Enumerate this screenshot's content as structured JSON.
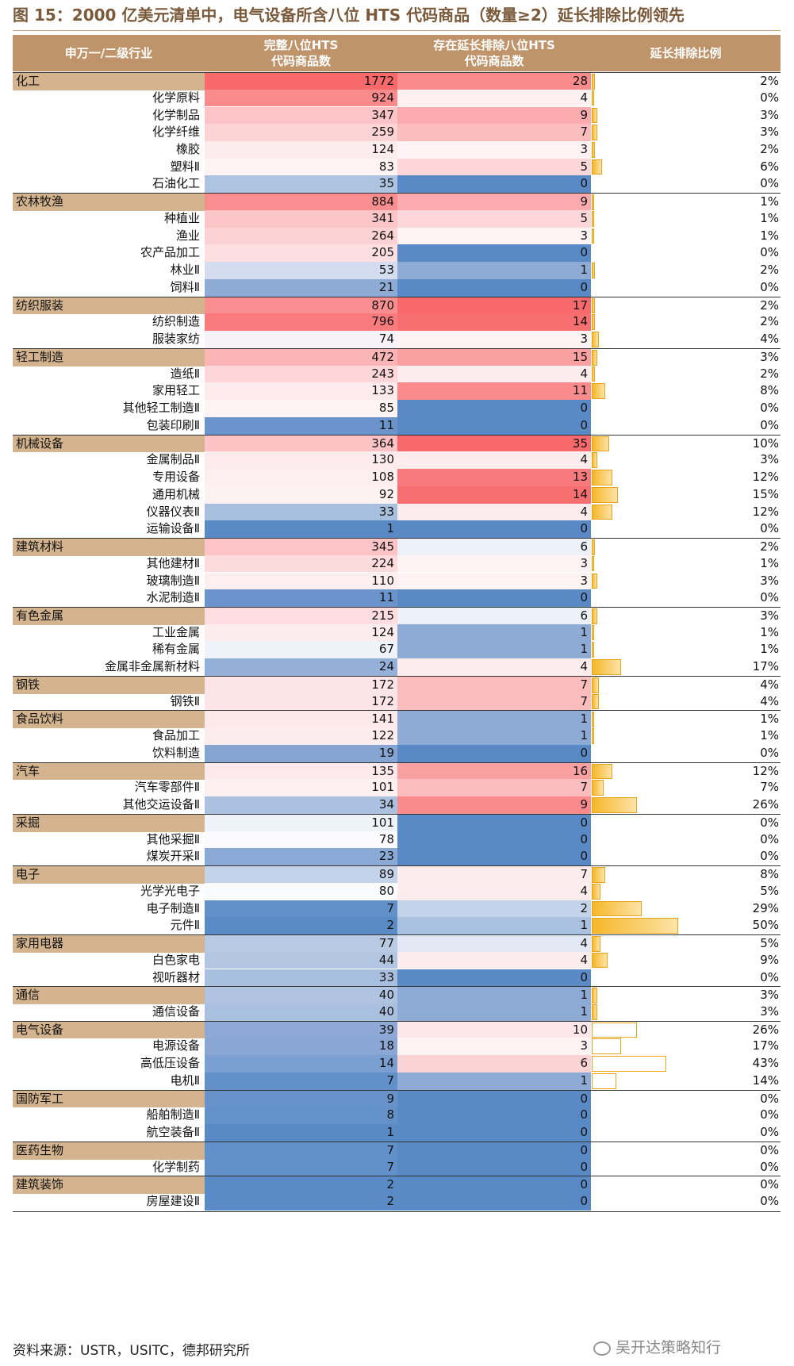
{
  "title": "图 15：2000 亿美元清单中，电气设备所含八位 HTS 代码商品（数量≥2）延长排除比例领先",
  "header": {
    "industry": "申万一/二级行业",
    "full_line1": "完整八位HTS",
    "full_line2": "代码商品数",
    "ext_line1": "存在延长排除八位HTS",
    "ext_line2": "代码商品数",
    "ratio": "延长排除比例"
  },
  "rows": [
    {
      "name": "化工",
      "level": 1,
      "full": "1772",
      "ext": "28",
      "pct": "2%",
      "full_color": "#f8696b",
      "ext_color": "#f98b8d",
      "ratio": 2,
      "hollow": false
    },
    {
      "name": "化学原料",
      "level": 2,
      "full": "924",
      "ext": "4",
      "pct": "0%",
      "full_color": "#f98b8d",
      "ext_color": "#fdf0f1",
      "ratio": 0.4,
      "hollow": false
    },
    {
      "name": "化学制品",
      "level": 2,
      "full": "347",
      "ext": "9",
      "pct": "3%",
      "full_color": "#fcc4c6",
      "ext_color": "#fbabae",
      "ratio": 3,
      "hollow": false
    },
    {
      "name": "化学纤维",
      "level": 2,
      "full": "259",
      "ext": "7",
      "pct": "3%",
      "full_color": "#fcd4d6",
      "ext_color": "#fbbcbe",
      "ratio": 3,
      "hollow": false
    },
    {
      "name": "橡胶",
      "level": 2,
      "full": "124",
      "ext": "3",
      "pct": "2%",
      "full_color": "#fdecee",
      "ext_color": "#fdf3f4",
      "ratio": 2,
      "hollow": false
    },
    {
      "name": "塑料Ⅱ",
      "level": 2,
      "full": "83",
      "ext": "5",
      "pct": "6%",
      "full_color": "#fdf3f4",
      "ext_color": "#fcd6d8",
      "ratio": 6,
      "hollow": false
    },
    {
      "name": "石油化工",
      "level": 2,
      "full": "35",
      "ext": "0",
      "pct": "0%",
      "full_color": "#aec3e0",
      "ext_color": "#5a8ac6",
      "ratio": 0,
      "hollow": false
    },
    {
      "name": "农林牧渔",
      "level": 1,
      "full": "884",
      "ext": "9",
      "pct": "1%",
      "full_color": "#f98e90",
      "ext_color": "#fbabae",
      "ratio": 1,
      "hollow": false
    },
    {
      "name": "种植业",
      "level": 2,
      "full": "341",
      "ext": "5",
      "pct": "1%",
      "full_color": "#fcc6c8",
      "ext_color": "#fcd6d8",
      "ratio": 1,
      "hollow": false
    },
    {
      "name": "渔业",
      "level": 2,
      "full": "264",
      "ext": "3",
      "pct": "1%",
      "full_color": "#fcd2d4",
      "ext_color": "#fdf3f4",
      "ratio": 1,
      "hollow": false
    },
    {
      "name": "农产品加工",
      "level": 2,
      "full": "205",
      "ext": "0",
      "pct": "0%",
      "full_color": "#fddfe1",
      "ext_color": "#5a8ac6",
      "ratio": 0,
      "hollow": false
    },
    {
      "name": "林业Ⅱ",
      "level": 2,
      "full": "53",
      "ext": "1",
      "pct": "2%",
      "full_color": "#d3ddef",
      "ext_color": "#8eabd6",
      "ratio": 2,
      "hollow": false
    },
    {
      "name": "饲料Ⅱ",
      "level": 2,
      "full": "21",
      "ext": "0",
      "pct": "0%",
      "full_color": "#8eabd6",
      "ext_color": "#5a8ac6",
      "ratio": 0,
      "hollow": false
    },
    {
      "name": "纺织服装",
      "level": 1,
      "full": "870",
      "ext": "17",
      "pct": "2%",
      "full_color": "#f98f91",
      "ext_color": "#f8696b",
      "ratio": 2,
      "hollow": false
    },
    {
      "name": "纺织制造",
      "level": 2,
      "full": "796",
      "ext": "14",
      "pct": "2%",
      "full_color": "#f97b7d",
      "ext_color": "#f86f71",
      "ratio": 2,
      "hollow": false
    },
    {
      "name": "服装家纺",
      "level": 2,
      "full": "74",
      "ext": "3",
      "pct": "4%",
      "full_color": "#f5f3f8",
      "ext_color": "#fdf3f4",
      "ratio": 4,
      "hollow": false
    },
    {
      "name": "轻工制造",
      "level": 1,
      "full": "472",
      "ext": "15",
      "pct": "3%",
      "full_color": "#fbb5b7",
      "ext_color": "#f9a0a2",
      "ratio": 3,
      "hollow": false
    },
    {
      "name": "造纸Ⅱ",
      "level": 2,
      "full": "243",
      "ext": "4",
      "pct": "2%",
      "full_color": "#fcd6d8",
      "ext_color": "#fdecee",
      "ratio": 2,
      "hollow": false
    },
    {
      "name": "家用轻工",
      "level": 2,
      "full": "133",
      "ext": "11",
      "pct": "8%",
      "full_color": "#fdeaec",
      "ext_color": "#f98b8d",
      "ratio": 8,
      "hollow": false
    },
    {
      "name": "其他轻工制造Ⅱ",
      "level": 2,
      "full": "85",
      "ext": "0",
      "pct": "0%",
      "full_color": "#fdf3f4",
      "ext_color": "#5a8ac6",
      "ratio": 0,
      "hollow": false
    },
    {
      "name": "包装印刷Ⅱ",
      "level": 2,
      "full": "11",
      "ext": "0",
      "pct": "0%",
      "full_color": "#6a94cb",
      "ext_color": "#5a8ac6",
      "ratio": 0,
      "hollow": false
    },
    {
      "name": "机械设备",
      "level": 1,
      "full": "364",
      "ext": "35",
      "pct": "10%",
      "full_color": "#fcc2c4",
      "ext_color": "#f8696b",
      "ratio": 10,
      "hollow": false
    },
    {
      "name": "金属制品Ⅱ",
      "level": 2,
      "full": "130",
      "ext": "4",
      "pct": "3%",
      "full_color": "#fdeaec",
      "ext_color": "#fdecee",
      "ratio": 3,
      "hollow": false
    },
    {
      "name": "专用设备",
      "level": 2,
      "full": "108",
      "ext": "13",
      "pct": "12%",
      "full_color": "#fdeef0",
      "ext_color": "#f97a7c",
      "ratio": 12,
      "hollow": false
    },
    {
      "name": "通用机械",
      "level": 2,
      "full": "92",
      "ext": "14",
      "pct": "15%",
      "full_color": "#fdf2f3",
      "ext_color": "#f86f71",
      "ratio": 15,
      "hollow": false
    },
    {
      "name": "仪器仪表Ⅱ",
      "level": 2,
      "full": "33",
      "ext": "4",
      "pct": "12%",
      "full_color": "#a9bfde",
      "ext_color": "#fdecee",
      "ratio": 12,
      "hollow": false
    },
    {
      "name": "运输设备Ⅱ",
      "level": 2,
      "full": "1",
      "ext": "0",
      "pct": "0%",
      "full_color": "#5a8ac6",
      "ext_color": "#5a8ac6",
      "ratio": 0,
      "hollow": false
    },
    {
      "name": "建筑材料",
      "level": 1,
      "full": "345",
      "ext": "6",
      "pct": "2%",
      "full_color": "#fcc4c6",
      "ext_color": "#ecf0f8",
      "ratio": 2,
      "hollow": false
    },
    {
      "name": "其他建材Ⅱ",
      "level": 2,
      "full": "224",
      "ext": "3",
      "pct": "1%",
      "full_color": "#fddbdd",
      "ext_color": "#fdf3f4",
      "ratio": 1,
      "hollow": false
    },
    {
      "name": "玻璃制造Ⅱ",
      "level": 2,
      "full": "110",
      "ext": "3",
      "pct": "3%",
      "full_color": "#fdeef0",
      "ext_color": "#fdf3f4",
      "ratio": 3,
      "hollow": false
    },
    {
      "name": "水泥制造Ⅱ",
      "level": 2,
      "full": "11",
      "ext": "0",
      "pct": "0%",
      "full_color": "#6a94cb",
      "ext_color": "#5a8ac6",
      "ratio": 0,
      "hollow": false
    },
    {
      "name": "有色金属",
      "level": 1,
      "full": "215",
      "ext": "6",
      "pct": "3%",
      "full_color": "#fddde0",
      "ext_color": "#ecf0f8",
      "ratio": 3,
      "hollow": false
    },
    {
      "name": "工业金属",
      "level": 2,
      "full": "124",
      "ext": "1",
      "pct": "1%",
      "full_color": "#fdecee",
      "ext_color": "#8eabd6",
      "ratio": 1,
      "hollow": false
    },
    {
      "name": "稀有金属",
      "level": 2,
      "full": "67",
      "ext": "1",
      "pct": "1%",
      "full_color": "#eef2f9",
      "ext_color": "#8eabd6",
      "ratio": 1,
      "hollow": false
    },
    {
      "name": "金属非金属新材料",
      "level": 2,
      "full": "24",
      "ext": "4",
      "pct": "17%",
      "full_color": "#95b0d8",
      "ext_color": "#fdecee",
      "ratio": 17,
      "hollow": false
    },
    {
      "name": "钢铁",
      "level": 1,
      "full": "172",
      "ext": "7",
      "pct": "4%",
      "full_color": "#fde4e6",
      "ext_color": "#fbbcbe",
      "ratio": 4,
      "hollow": false
    },
    {
      "name": "钢铁Ⅱ",
      "level": 2,
      "full": "172",
      "ext": "7",
      "pct": "4%",
      "full_color": "#fde4e6",
      "ext_color": "#fbbcbe",
      "ratio": 4,
      "hollow": false
    },
    {
      "name": "食品饮料",
      "level": 1,
      "full": "141",
      "ext": "1",
      "pct": "1%",
      "full_color": "#fde8ea",
      "ext_color": "#8eabd6",
      "ratio": 1,
      "hollow": false
    },
    {
      "name": "食品加工",
      "level": 2,
      "full": "122",
      "ext": "1",
      "pct": "1%",
      "full_color": "#fdecee",
      "ext_color": "#8eabd6",
      "ratio": 1,
      "hollow": false
    },
    {
      "name": "饮料制造",
      "level": 2,
      "full": "19",
      "ext": "0",
      "pct": "0%",
      "full_color": "#86a5d3",
      "ext_color": "#5a8ac6",
      "ratio": 0,
      "hollow": false
    },
    {
      "name": "汽车",
      "level": 1,
      "full": "135",
      "ext": "16",
      "pct": "12%",
      "full_color": "#fde9eb",
      "ext_color": "#f9a0a2",
      "ratio": 12,
      "hollow": false
    },
    {
      "name": "汽车零部件Ⅱ",
      "level": 2,
      "full": "101",
      "ext": "7",
      "pct": "7%",
      "full_color": "#fdf0f1",
      "ext_color": "#fbbcbe",
      "ratio": 7,
      "hollow": false
    },
    {
      "name": "其他交运设备Ⅱ",
      "level": 2,
      "full": "34",
      "ext": "9",
      "pct": "26%",
      "full_color": "#abc1df",
      "ext_color": "#f98b8d",
      "ratio": 26,
      "hollow": false
    },
    {
      "name": "采掘",
      "level": 1,
      "full": "101",
      "ext": "0",
      "pct": "0%",
      "full_color": "#eef2f9",
      "ext_color": "#5a8ac6",
      "ratio": 0,
      "hollow": false
    },
    {
      "name": "其他采掘Ⅱ",
      "level": 2,
      "full": "78",
      "ext": "0",
      "pct": "0%",
      "full_color": "#fbfbfd",
      "ext_color": "#5a8ac6",
      "ratio": 0,
      "hollow": false
    },
    {
      "name": "煤炭开采Ⅱ",
      "level": 2,
      "full": "23",
      "ext": "0",
      "pct": "0%",
      "full_color": "#8ba9d5",
      "ext_color": "#5a8ac6",
      "ratio": 0,
      "hollow": false
    },
    {
      "name": "电子",
      "level": 1,
      "full": "89",
      "ext": "7",
      "pct": "8%",
      "full_color": "#c5d3ea",
      "ext_color": "#fdecee",
      "ratio": 8,
      "hollow": false
    },
    {
      "name": "光学光电子",
      "level": 2,
      "full": "80",
      "ext": "4",
      "pct": "5%",
      "full_color": "#fafbfd",
      "ext_color": "#fdecee",
      "ratio": 5,
      "hollow": false
    },
    {
      "name": "电子制造Ⅱ",
      "level": 2,
      "full": "7",
      "ext": "2",
      "pct": "29%",
      "full_color": "#6290c9",
      "ext_color": "#c5d3ea",
      "ratio": 29,
      "hollow": false
    },
    {
      "name": "元件Ⅱ",
      "level": 2,
      "full": "2",
      "ext": "1",
      "pct": "50%",
      "full_color": "#5b8bc6",
      "ext_color": "#aac0df",
      "ratio": 50,
      "hollow": false
    },
    {
      "name": "家用电器",
      "level": 1,
      "full": "77",
      "ext": "4",
      "pct": "5%",
      "full_color": "#b9cae5",
      "ext_color": "#e2e9f4",
      "ratio": 5,
      "hollow": false
    },
    {
      "name": "白色家电",
      "level": 2,
      "full": "44",
      "ext": "4",
      "pct": "9%",
      "full_color": "#b2c6e2",
      "ext_color": "#fdecee",
      "ratio": 9,
      "hollow": false
    },
    {
      "name": "视听器材",
      "level": 2,
      "full": "33",
      "ext": "0",
      "pct": "0%",
      "full_color": "#a9bfde",
      "ext_color": "#5a8ac6",
      "ratio": 0,
      "hollow": false
    },
    {
      "name": "通信",
      "level": 1,
      "full": "40",
      "ext": "1",
      "pct": "3%",
      "full_color": "#b0c4e1",
      "ext_color": "#8eabd6",
      "ratio": 3,
      "hollow": false
    },
    {
      "name": "通信设备",
      "level": 2,
      "full": "40",
      "ext": "1",
      "pct": "3%",
      "full_color": "#aac0df",
      "ext_color": "#8eabd6",
      "ratio": 3,
      "hollow": false
    },
    {
      "name": "电气设备",
      "level": 1,
      "full": "39",
      "ext": "10",
      "pct": "26%",
      "full_color": "#8ea9d6",
      "ext_color": "#fde7e9",
      "ratio": 26,
      "hollow": true
    },
    {
      "name": "电源设备",
      "level": 2,
      "full": "18",
      "ext": "3",
      "pct": "17%",
      "full_color": "#8aa7d4",
      "ext_color": "#fdf3f4",
      "ratio": 17,
      "hollow": true
    },
    {
      "name": "高低压设备",
      "level": 2,
      "full": "14",
      "ext": "6",
      "pct": "43%",
      "full_color": "#7b9fd0",
      "ext_color": "#fcd3d5",
      "ratio": 43,
      "hollow": true
    },
    {
      "name": "电机Ⅱ",
      "level": 2,
      "full": "7",
      "ext": "1",
      "pct": "14%",
      "full_color": "#6290c9",
      "ext_color": "#8eabd6",
      "ratio": 14,
      "hollow": true
    },
    {
      "name": "国防军工",
      "level": 1,
      "full": "9",
      "ext": "0",
      "pct": "0%",
      "full_color": "#6893ca",
      "ext_color": "#5a8ac6",
      "ratio": 0,
      "hollow": false
    },
    {
      "name": "船舶制造Ⅱ",
      "level": 2,
      "full": "8",
      "ext": "0",
      "pct": "0%",
      "full_color": "#6591c9",
      "ext_color": "#5a8ac6",
      "ratio": 0,
      "hollow": false
    },
    {
      "name": "航空装备Ⅱ",
      "level": 2,
      "full": "1",
      "ext": "0",
      "pct": "0%",
      "full_color": "#5a8ac6",
      "ext_color": "#5a8ac6",
      "ratio": 0,
      "hollow": false
    },
    {
      "name": "医药生物",
      "level": 1,
      "full": "7",
      "ext": "0",
      "pct": "0%",
      "full_color": "#6290c9",
      "ext_color": "#5a8ac6",
      "ratio": 0,
      "hollow": false
    },
    {
      "name": "化学制药",
      "level": 2,
      "full": "7",
      "ext": "0",
      "pct": "0%",
      "full_color": "#6290c9",
      "ext_color": "#5a8ac6",
      "ratio": 0,
      "hollow": false
    },
    {
      "name": "建筑装饰",
      "level": 1,
      "full": "2",
      "ext": "0",
      "pct": "0%",
      "full_color": "#5b8bc6",
      "ext_color": "#5a8ac6",
      "ratio": 0,
      "hollow": false
    },
    {
      "name": "房屋建设Ⅱ",
      "level": 2,
      "full": "2",
      "ext": "0",
      "pct": "0%",
      "full_color": "#5b8bc6",
      "ext_color": "#5a8ac6",
      "ratio": 0,
      "hollow": false
    }
  ],
  "footer": "资料来源：USTR，USITC，德邦研究所",
  "watermark": "吴开达策略知行"
}
